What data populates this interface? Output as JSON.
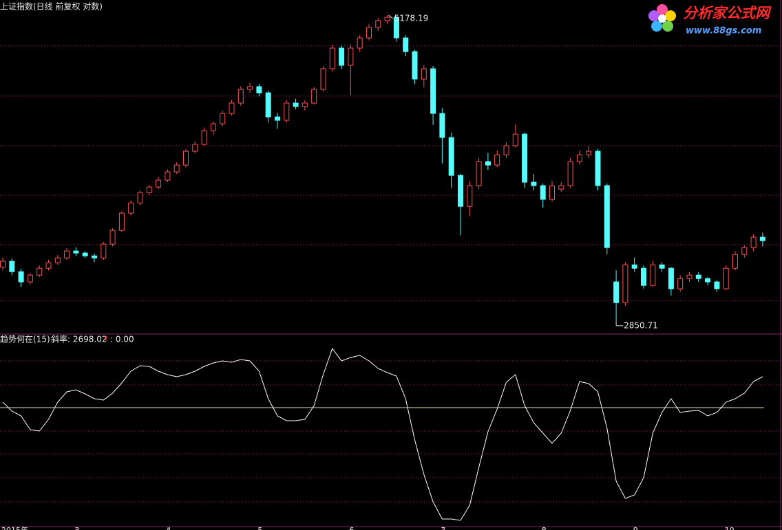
{
  "chart_data": [
    {
      "type": "candlestick",
      "title": "上证指数(日线 前复权 对数)",
      "log": true,
      "ylim": [
        2786,
        5333
      ],
      "gridlines": [
        4877,
        4423,
        4016,
        3646,
        3311,
        2970
      ],
      "up_color": "#ff5050",
      "down_color": "#54fcfc",
      "grid_color": "#8a2a6a",
      "open": [
        3170,
        3206,
        3142,
        3080,
        3121,
        3163,
        3197,
        3227,
        3271,
        3258,
        3240,
        3227,
        3315,
        3405,
        3521,
        3592,
        3665,
        3705,
        3755,
        3816,
        3867,
        3972,
        4026,
        4135,
        4191,
        4276,
        4363,
        4481,
        4505,
        4451,
        4247,
        4219,
        4363,
        4334,
        4363,
        4481,
        4665,
        4856,
        4696,
        4856,
        4954,
        5055,
        5123,
        5157,
        4954,
        4823,
        4572,
        4665,
        4276,
        4080,
        3790,
        3568,
        3715,
        3893,
        3867,
        3945,
        4015,
        4107,
        3740,
        3715,
        3617,
        3690,
        3715,
        3893,
        3945,
        3972,
        3715,
        3080,
        2958,
        3184,
        3163,
        3059,
        3184,
        3163,
        3039,
        3100,
        3121,
        3100,
        3080,
        3039,
        3163,
        3249,
        3293,
        3360
      ],
      "high": [
        3230,
        3225,
        3160,
        3135,
        3180,
        3215,
        3245,
        3290,
        3295,
        3270,
        3255,
        3330,
        3420,
        3535,
        3610,
        3680,
        3720,
        3780,
        3835,
        3890,
        3990,
        4050,
        4160,
        4210,
        4300,
        4390,
        4510,
        4540,
        4530,
        4470,
        4280,
        4390,
        4400,
        4390,
        4500,
        4690,
        4890,
        4880,
        4890,
        4980,
        5090,
        5150,
        5178.19,
        5170,
        4980,
        4840,
        4700,
        4690,
        4320,
        4120,
        3800,
        3750,
        3920,
        3960,
        3980,
        4040,
        4184,
        4120,
        3800,
        3730,
        3750,
        3740,
        3920,
        3980,
        4010,
        3990,
        3730,
        3150,
        3200,
        3230,
        3180,
        3210,
        3200,
        3170,
        3120,
        3140,
        3140,
        3110,
        3090,
        3180,
        3270,
        3310,
        3380,
        3390
      ],
      "low": [
        3150,
        3120,
        3050,
        3065,
        3110,
        3150,
        3185,
        3215,
        3240,
        3225,
        3200,
        3215,
        3300,
        3395,
        3505,
        3575,
        3650,
        3690,
        3740,
        3800,
        3850,
        3955,
        4010,
        4100,
        4170,
        4260,
        4340,
        4450,
        4420,
        4200,
        4150,
        4200,
        4310,
        4300,
        4350,
        4460,
        4640,
        4660,
        4430,
        4820,
        4930,
        5020,
        5090,
        4920,
        4780,
        4530,
        4500,
        4180,
        3880,
        3700,
        3373,
        3500,
        3690,
        3830,
        3850,
        3920,
        4000,
        3700,
        3680,
        3560,
        3600,
        3670,
        3700,
        3870,
        3920,
        3680,
        3250,
        2850.71,
        2940,
        3140,
        3040,
        3050,
        3140,
        3000,
        3020,
        3080,
        3080,
        3060,
        3020,
        3030,
        3150,
        3230,
        3270,
        3300
      ],
      "close": [
        3206,
        3142,
        3080,
        3121,
        3163,
        3197,
        3227,
        3271,
        3258,
        3240,
        3227,
        3315,
        3405,
        3521,
        3592,
        3665,
        3705,
        3755,
        3816,
        3867,
        3972,
        4026,
        4135,
        4191,
        4276,
        4363,
        4481,
        4505,
        4451,
        4247,
        4219,
        4363,
        4334,
        4363,
        4481,
        4665,
        4856,
        4696,
        4856,
        4954,
        5055,
        5123,
        5157,
        4954,
        4823,
        4572,
        4665,
        4276,
        4080,
        3790,
        3568,
        3715,
        3893,
        3867,
        3945,
        4015,
        4107,
        3740,
        3715,
        3617,
        3715,
        3715,
        3893,
        3945,
        3972,
        3715,
        3293,
        2958,
        3184,
        3163,
        3059,
        3184,
        3163,
        3039,
        3100,
        3121,
        3100,
        3080,
        3039,
        3163,
        3249,
        3293,
        3360,
        3337
      ],
      "x_labels": [
        {
          "index": 0,
          "label": "2015年"
        },
        {
          "index": 8,
          "label": "3"
        },
        {
          "index": 18,
          "label": "4"
        },
        {
          "index": 28,
          "label": "5"
        },
        {
          "index": 38,
          "label": "6"
        },
        {
          "index": 48,
          "label": "7"
        },
        {
          "index": 59,
          "label": "8"
        },
        {
          "index": 69,
          "label": "9"
        },
        {
          "index": 79,
          "label": "10"
        }
      ]
    },
    {
      "type": "line",
      "name": "趋势何在(15)",
      "slope_label": "斜率: 2698.02",
      "arrow": "↑",
      "zero_label": ": 0.00",
      "ylim": [
        -177,
        106
      ],
      "gridlines": [
        68,
        33,
        -34,
        -67,
        -102,
        -137
      ],
      "zero_line": 0,
      "color": "#ffffff",
      "zero_color": "#e8e0a0",
      "values": [
        8,
        -5,
        -12,
        -32,
        -34,
        -17,
        8,
        23,
        26,
        20,
        13,
        11,
        21,
        36,
        53,
        61,
        60,
        53,
        48,
        45,
        48,
        53,
        60,
        65,
        68,
        66,
        70,
        68,
        53,
        13,
        -12,
        -19,
        -19,
        -17,
        3,
        48,
        86,
        68,
        73,
        76,
        68,
        57,
        51,
        46,
        13,
        -47,
        -97,
        -137,
        -162,
        -162,
        -164,
        -142,
        -87,
        -35,
        -2,
        37,
        48,
        3,
        -22,
        -37,
        -52,
        -37,
        -4,
        38,
        35,
        23,
        -30,
        -107,
        -132,
        -127,
        -102,
        -37,
        -7,
        13,
        -7,
        -5,
        -4,
        -12,
        -7,
        8,
        13,
        21,
        38,
        45
      ]
    }
  ],
  "logo": {
    "title": "分析家公式网",
    "url": "www.88gs.com"
  }
}
